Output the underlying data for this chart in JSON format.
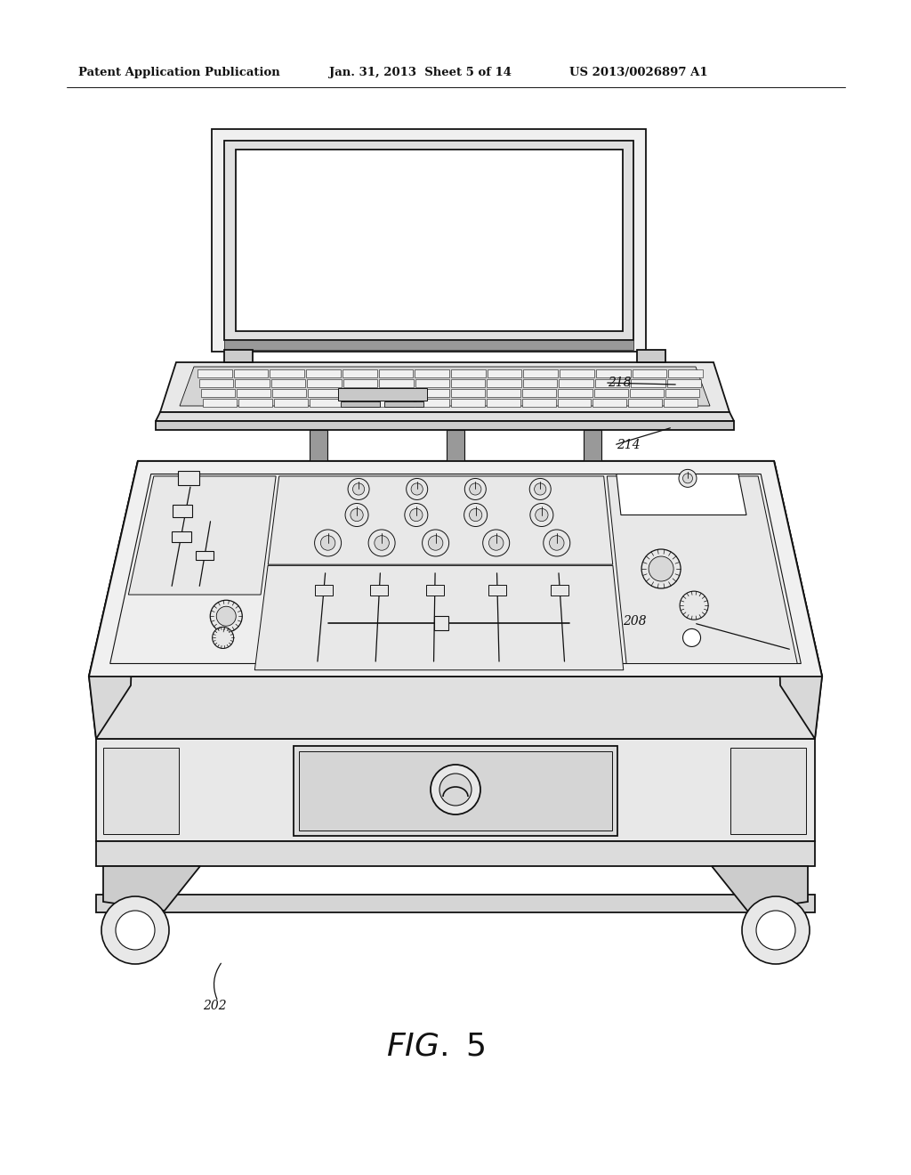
{
  "bg_color": "#ffffff",
  "line_color": "#111111",
  "header_text": "Patent Application Publication",
  "header_date": "Jan. 31, 2013  Sheet 5 of 14",
  "header_patent": "US 2013/0026897 A1",
  "fig_label": "FIG. 5",
  "lw": 1.3
}
